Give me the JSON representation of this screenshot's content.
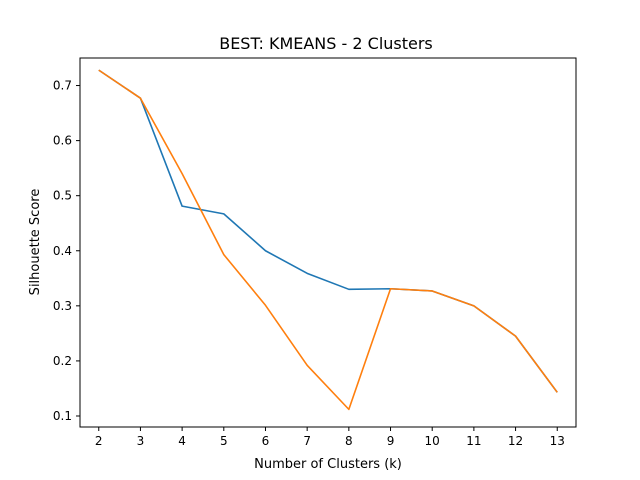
{
  "chart_data": {
    "type": "line",
    "title": "BEST: KMEANS - 2 Clusters",
    "xlabel": "Number of Clusters (k)",
    "ylabel": "Silhouette Score",
    "x": [
      2,
      3,
      4,
      5,
      6,
      7,
      8,
      9,
      10,
      11,
      12,
      13
    ],
    "xlim": [
      1.55,
      13.45
    ],
    "ylim": [
      0.08,
      0.75
    ],
    "xticks": [
      2,
      3,
      4,
      5,
      6,
      7,
      8,
      9,
      10,
      11,
      12,
      13
    ],
    "yticks": [
      0.1,
      0.2,
      0.3,
      0.4,
      0.5,
      0.6,
      0.7
    ],
    "grid": false,
    "series": [
      {
        "color": "#1f77b4",
        "values": [
          0.728,
          0.677,
          0.481,
          0.467,
          0.4,
          0.359,
          0.33,
          0.331,
          0.327,
          0.3,
          0.245,
          0.143
        ]
      },
      {
        "color": "#ff7f0e",
        "values": [
          0.728,
          0.677,
          0.54,
          0.393,
          0.301,
          0.192,
          0.112,
          0.331,
          0.327,
          0.3,
          0.245,
          0.143
        ]
      }
    ]
  }
}
